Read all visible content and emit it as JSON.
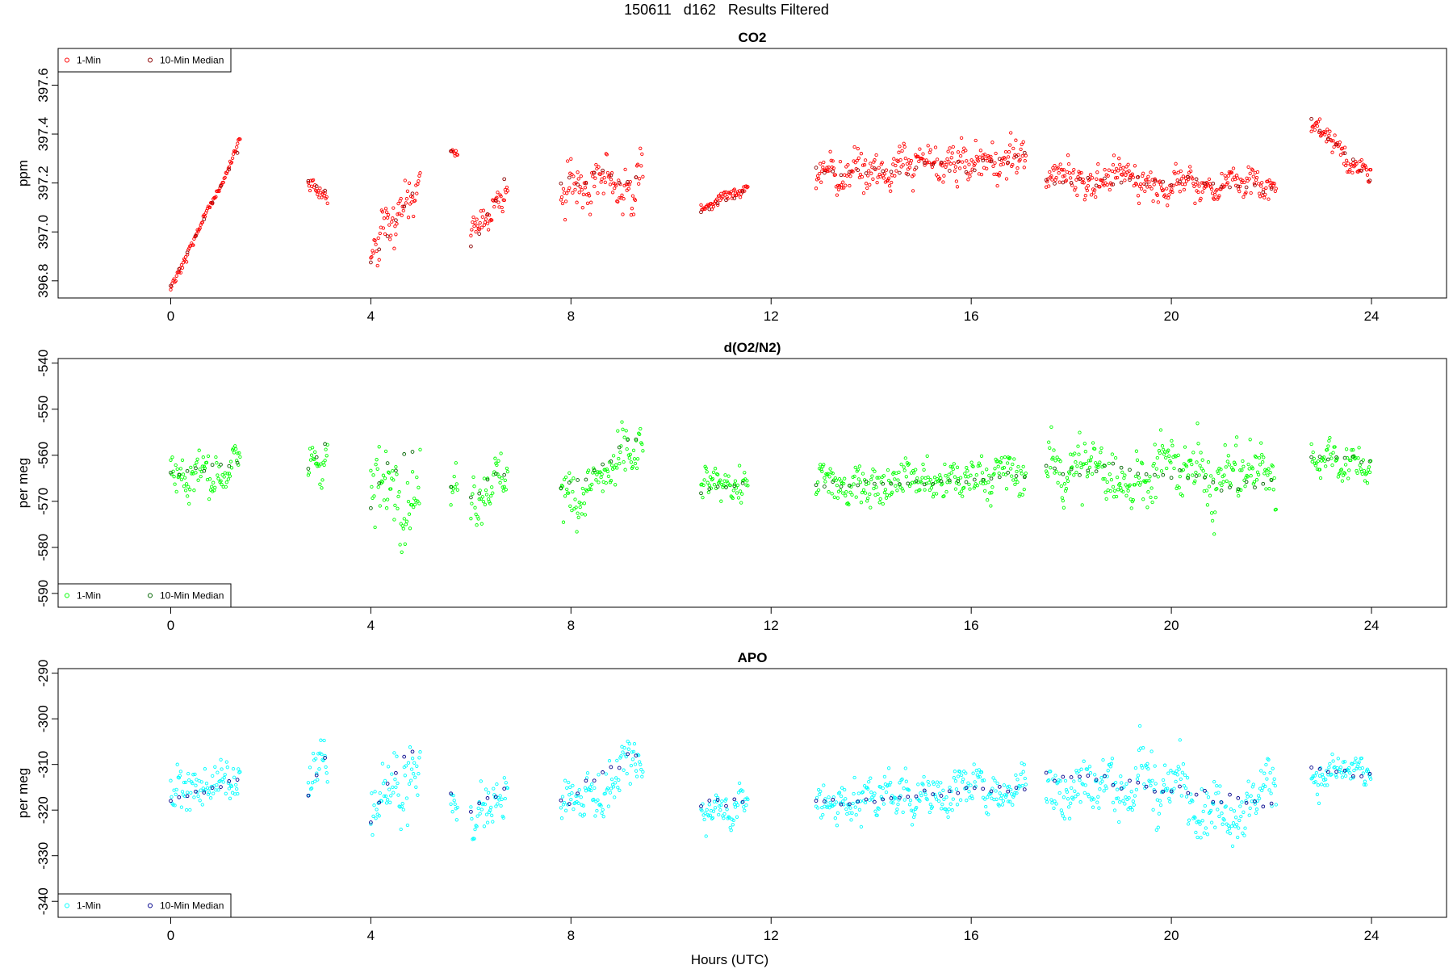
{
  "figure": {
    "title": "150611   d162   Results Filtered",
    "xlabel": "Hours (UTC)"
  },
  "chart_data": [
    {
      "type": "scatter",
      "title": "CO2",
      "ylabel": "ppm",
      "xlim": [
        -2.25,
        25.5
      ],
      "ylim": [
        396.73,
        397.75
      ],
      "xticks": [
        0,
        4,
        8,
        12,
        16,
        20,
        24
      ],
      "yticks": [
        396.8,
        397.0,
        397.2,
        397.4,
        397.6
      ],
      "ytick_labels": [
        "396.8",
        "397.0",
        "397.2",
        "397.4",
        "397.6"
      ],
      "legend_position": "top-left",
      "series": [
        {
          "name": "1-Min",
          "color": "#ff0000",
          "marker": "open-circle",
          "segments": [
            {
              "x": [
                0.0,
                1.4
              ],
              "y": [
                396.76,
                397.37
              ],
              "noise": 0.02
            },
            {
              "x": [
                2.75,
                3.15
              ],
              "y": [
                397.2,
                397.16
              ],
              "noise": 0.04
            },
            {
              "x": [
                4.0,
                5.0
              ],
              "y": [
                396.9,
                397.22
              ],
              "noise": 0.1
            },
            {
              "x": [
                5.6,
                5.75
              ],
              "y": [
                397.34,
                397.33
              ],
              "noise": 0.02
            },
            {
              "x": [
                6.0,
                6.75
              ],
              "y": [
                396.98,
                397.22
              ],
              "noise": 0.06
            },
            {
              "x": [
                7.8,
                9.45
              ],
              "y": [
                397.2,
                397.2
              ],
              "noise": 0.12
            },
            {
              "x": [
                10.6,
                11.55
              ],
              "y": [
                397.1,
                397.18
              ],
              "noise": 0.03
            },
            {
              "x": [
                12.9,
                17.1
              ],
              "y": [
                397.24,
                397.3
              ],
              "noise": 0.08
            },
            {
              "x": [
                17.5,
                22.1
              ],
              "y": [
                397.22,
                397.2
              ],
              "noise": 0.07
            },
            {
              "x": [
                22.8,
                24.0
              ],
              "y": [
                397.46,
                397.2
              ],
              "noise": 0.05
            }
          ]
        },
        {
          "name": "10-Min Median",
          "color": "#8b0000",
          "marker": "open-circle",
          "segments": [
            {
              "x": [
                0.0,
                1.4
              ],
              "y": [
                396.78,
                397.35
              ],
              "noise": 0.0
            },
            {
              "x": [
                2.75,
                3.15
              ],
              "y": [
                397.2,
                397.15
              ],
              "noise": 0.01
            },
            {
              "x": [
                4.0,
                5.0
              ],
              "y": [
                396.88,
                397.22
              ],
              "noise": 0.03
            },
            {
              "x": [
                5.6,
                5.75
              ],
              "y": [
                397.33,
                397.33
              ],
              "noise": 0.0
            },
            {
              "x": [
                6.0,
                6.75
              ],
              "y": [
                396.95,
                397.25
              ],
              "noise": 0.02
            },
            {
              "x": [
                7.8,
                9.45
              ],
              "y": [
                397.22,
                397.2
              ],
              "noise": 0.05
            },
            {
              "x": [
                10.6,
                11.55
              ],
              "y": [
                397.08,
                397.18
              ],
              "noise": 0.01
            },
            {
              "x": [
                12.9,
                17.1
              ],
              "y": [
                397.25,
                397.3
              ],
              "noise": 0.04
            },
            {
              "x": [
                17.5,
                22.1
              ],
              "y": [
                397.22,
                397.2
              ],
              "noise": 0.03
            },
            {
              "x": [
                22.8,
                24.0
              ],
              "y": [
                397.46,
                397.22
              ],
              "noise": 0.02
            }
          ]
        }
      ]
    },
    {
      "type": "scatter",
      "title": "d(O2/N2)",
      "ylabel": "per meg",
      "xlim": [
        -2.25,
        25.5
      ],
      "ylim": [
        -593,
        -539
      ],
      "xticks": [
        0,
        4,
        8,
        12,
        16,
        20,
        24
      ],
      "yticks": [
        -590,
        -580,
        -570,
        -560,
        -550,
        -540
      ],
      "ytick_labels": [
        "-590",
        "-580",
        "-570",
        "-560",
        "-550",
        "-540"
      ],
      "legend_position": "bottom-left",
      "series": [
        {
          "name": "1-Min",
          "color": "#00ff00",
          "marker": "open-circle",
          "segments": [
            {
              "x": [
                0.0,
                1.4
              ],
              "y": [
                -564,
                -563
              ],
              "noise": 5
            },
            {
              "x": [
                2.75,
                3.15
              ],
              "y": [
                -564,
                -558
              ],
              "noise": 6
            },
            {
              "x": [
                4.0,
                5.0
              ],
              "y": [
                -568,
                -566
              ],
              "noise": 9
            },
            {
              "x": [
                5.6,
                5.75
              ],
              "y": [
                -568,
                -566
              ],
              "noise": 5
            },
            {
              "x": [
                6.0,
                6.75
              ],
              "y": [
                -568,
                -563
              ],
              "noise": 7
            },
            {
              "x": [
                7.8,
                9.45
              ],
              "y": [
                -568,
                -560
              ],
              "noise": 6
            },
            {
              "x": [
                10.6,
                11.55
              ],
              "y": [
                -567,
                -566
              ],
              "noise": 4
            },
            {
              "x": [
                12.9,
                17.1
              ],
              "y": [
                -567,
                -564
              ],
              "noise": 5
            },
            {
              "x": [
                17.5,
                22.1
              ],
              "y": [
                -563,
                -565
              ],
              "noise": 7
            },
            {
              "x": [
                22.8,
                24.0
              ],
              "y": [
                -561,
                -562
              ],
              "noise": 4
            }
          ]
        },
        {
          "name": "10-Min Median",
          "color": "#006400",
          "marker": "open-circle",
          "segments": [
            {
              "x": [
                0.0,
                1.4
              ],
              "y": [
                -564,
                -562
              ],
              "noise": 1
            },
            {
              "x": [
                2.75,
                3.15
              ],
              "y": [
                -563,
                -556
              ],
              "noise": 1
            },
            {
              "x": [
                4.0,
                5.0
              ],
              "y": [
                -572,
                -552
              ],
              "noise": 5
            },
            {
              "x": [
                5.6,
                5.75
              ],
              "y": [
                -567,
                -566
              ],
              "noise": 1
            },
            {
              "x": [
                6.0,
                6.75
              ],
              "y": [
                -569,
                -562
              ],
              "noise": 2
            },
            {
              "x": [
                7.8,
                9.45
              ],
              "y": [
                -568,
                -556
              ],
              "noise": 2
            },
            {
              "x": [
                10.6,
                11.55
              ],
              "y": [
                -568,
                -566
              ],
              "noise": 1
            },
            {
              "x": [
                12.9,
                17.1
              ],
              "y": [
                -567,
                -564
              ],
              "noise": 1
            },
            {
              "x": [
                17.5,
                22.1
              ],
              "y": [
                -563,
                -566
              ],
              "noise": 2
            },
            {
              "x": [
                22.8,
                24.0
              ],
              "y": [
                -560,
                -561
              ],
              "noise": 1
            }
          ]
        }
      ]
    },
    {
      "type": "scatter",
      "title": "APO",
      "ylabel": "per meg",
      "xlim": [
        -2.25,
        25.5
      ],
      "ylim": [
        -343.5,
        -289
      ],
      "xticks": [
        0,
        4,
        8,
        12,
        16,
        20,
        24
      ],
      "yticks": [
        -340,
        -330,
        -320,
        -310,
        -300,
        -290
      ],
      "ytick_labels": [
        "-340",
        "-330",
        "-320",
        "-310",
        "-300",
        "-290"
      ],
      "legend_position": "bottom-left",
      "series": [
        {
          "name": "1-Min",
          "color": "#00ffff",
          "marker": "open-circle",
          "segments": [
            {
              "x": [
                0.0,
                1.4
              ],
              "y": [
                -317,
                -314
              ],
              "noise": 5
            },
            {
              "x": [
                2.75,
                3.15
              ],
              "y": [
                -314,
                -309
              ],
              "noise": 6
            },
            {
              "x": [
                4.0,
                5.0
              ],
              "y": [
                -320,
                -313
              ],
              "noise": 9
            },
            {
              "x": [
                5.6,
                5.75
              ],
              "y": [
                -319,
                -318
              ],
              "noise": 5
            },
            {
              "x": [
                6.0,
                6.75
              ],
              "y": [
                -320,
                -315
              ],
              "noise": 7
            },
            {
              "x": [
                7.8,
                9.45
              ],
              "y": [
                -319,
                -311
              ],
              "noise": 6
            },
            {
              "x": [
                10.6,
                11.55
              ],
              "y": [
                -319,
                -318
              ],
              "noise": 4
            },
            {
              "x": [
                12.9,
                17.1
              ],
              "y": [
                -318,
                -314
              ],
              "noise": 5
            },
            {
              "x": [
                17.5,
                22.1
              ],
              "y": [
                -314,
                -316
              ],
              "noise": 7
            },
            {
              "x": [
                22.8,
                24.0
              ],
              "y": [
                -312,
                -313
              ],
              "noise": 4
            }
          ]
        },
        {
          "name": "10-Min Median",
          "color": "#00008b",
          "marker": "open-circle",
          "segments": [
            {
              "x": [
                0.0,
                1.4
              ],
              "y": [
                -318,
                -314
              ],
              "noise": 1
            },
            {
              "x": [
                2.75,
                3.15
              ],
              "y": [
                -316,
                -307
              ],
              "noise": 1
            },
            {
              "x": [
                4.0,
                5.0
              ],
              "y": [
                -324,
                -302
              ],
              "noise": 4
            },
            {
              "x": [
                5.6,
                5.75
              ],
              "y": [
                -317,
                -318
              ],
              "noise": 1
            },
            {
              "x": [
                6.0,
                6.75
              ],
              "y": [
                -320,
                -316
              ],
              "noise": 2
            },
            {
              "x": [
                7.8,
                9.45
              ],
              "y": [
                -319,
                -306
              ],
              "noise": 2
            },
            {
              "x": [
                10.6,
                11.55
              ],
              "y": [
                -319,
                -317
              ],
              "noise": 1
            },
            {
              "x": [
                12.9,
                17.1
              ],
              "y": [
                -318,
                -315
              ],
              "noise": 1
            },
            {
              "x": [
                17.5,
                22.1
              ],
              "y": [
                -313,
                -319
              ],
              "noise": 2
            },
            {
              "x": [
                22.8,
                24.0
              ],
              "y": [
                -311,
                -313
              ],
              "noise": 1
            }
          ]
        }
      ]
    }
  ]
}
